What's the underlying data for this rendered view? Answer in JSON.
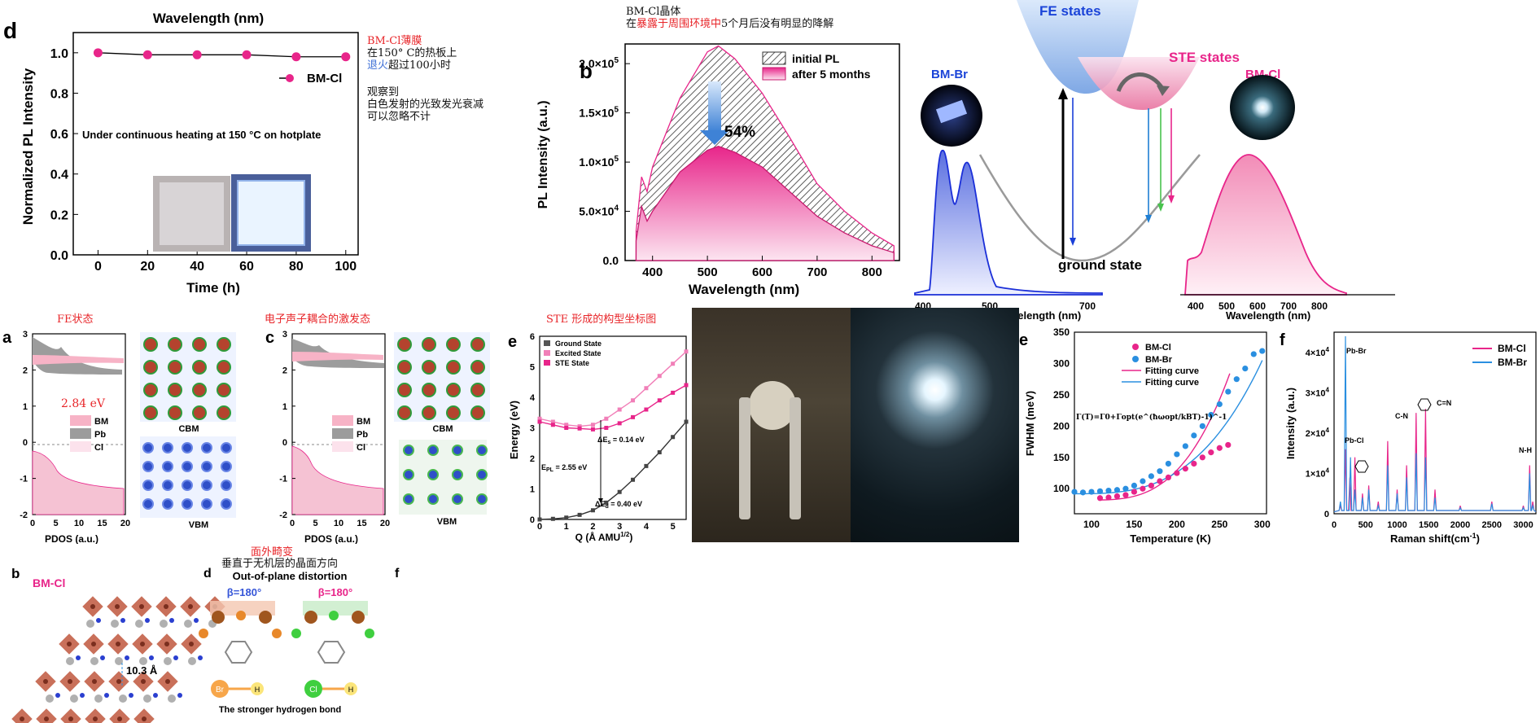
{
  "panel_d_top": {
    "letter": "d",
    "title": "Wavelength (nm)",
    "ylabel": "Normalized PL Intensity",
    "xlabel": "Time (h)",
    "legend": "BM-Cl",
    "annotation": "Under continuous heating at 150 °C on hotplate",
    "color": "#e8258a"
  },
  "note_d": {
    "l1": "BM-Cl薄膜",
    "l2": "在150° C的热板上",
    "l3a": "退火",
    "l3b": "超过100小时",
    "l4": "观察到",
    "l5": "白色发射的光致发光衰减",
    "l6": "可以忽略不计"
  },
  "panel_b_top": {
    "letter": "b",
    "note1": "BM-Cl晶体",
    "note2a": "在",
    "note2b": "暴露于周围环境中",
    "note2c": "5个月后没有明显的降解",
    "ylabel": "PL Intensity (a.u.)",
    "xlabel": "Wavelength (nm)",
    "legend1": "initial PL",
    "legend2": "after 5 months",
    "pct": "54%",
    "color": "#e8258a"
  },
  "panel_fe": {
    "fe": "FE states",
    "ste": "STE states",
    "ground": "ground state",
    "bmbr": "BM-Br",
    "bmcl": "BM-Cl",
    "xlabel1": "Wavelength (nm)",
    "xlabel2": "Wavelength (nm)"
  },
  "panel_a": {
    "letter": "a",
    "note": "FE状态",
    "energy": "2.84 eV",
    "legend": [
      "BM",
      "Pb",
      "Cl"
    ],
    "xlabel": "PDOS (a.u.)",
    "cbm": "CBM",
    "vbm": "VBM"
  },
  "panel_c": {
    "letter": "c",
    "note": "电子声子耦合的激发态",
    "legend": [
      "BM",
      "Pb",
      "Cl"
    ],
    "xlabel": "PDOS (a.u.)",
    "cbm": "CBM",
    "vbm": "VBM"
  },
  "panel_e_left": {
    "letter": "e",
    "note": "STE 形成的构型坐标图",
    "ylabel": "Energy (eV)",
    "xlabel": "Q (Å AMU",
    "legend": [
      "Ground State",
      "Excited State",
      "STE State"
    ],
    "es": "ΔE",
    "es_sub": "s",
    "es_val": " = 0.14 eV",
    "epl": "E",
    "epl_sub": "PL",
    "epl_val": " = 2.55 eV",
    "ed": "ΔE",
    "ed_sub": "d",
    "ed_val": " = 0.40 eV"
  },
  "panel_e_right": {
    "letter": "e",
    "ylabel": "FWHM (meV)",
    "xlabel": "Temperature (K)",
    "legend": [
      "BM-Cl",
      "BM-Br",
      "Fitting curve",
      "Fitting curve"
    ],
    "formula": "Γ(T)=Γ0+Γopt(e^(ħωopt/kBT)-1)^-1",
    "colors": {
      "cl": "#e8258a",
      "br": "#2a8fe0"
    }
  },
  "panel_f_right": {
    "letter": "f",
    "ylabel": "Intensity (a.u.)",
    "xlabel": "Raman shift(cm",
    "legend": [
      "BM-Cl",
      "BM-Br"
    ],
    "peaks": [
      "Pb-Br",
      "Pb-Cl",
      "C-N",
      "C=N",
      "N-H"
    ]
  },
  "panel_bottom": {
    "b": "b",
    "bmcl": "BM-Cl",
    "dist": "10.3 Å",
    "d": "d",
    "f": "f",
    "note1": "面外畸变",
    "note2": "垂直于无机层的晶面方向",
    "title": "Out-of-plane distortion",
    "beta1": "β=180°",
    "beta2": "β=180°",
    "br": "Br",
    "h1": "H",
    "cl": "Cl",
    "h2": "H",
    "caption": "The stronger hydrogen bond"
  },
  "chart_data": [
    {
      "type": "scatter",
      "title": "Wavelength (nm)",
      "xlabel": "Time (h)",
      "ylabel": "Normalized PL Intensity",
      "xlim": [
        -10,
        105
      ],
      "ylim": [
        0,
        1.1
      ],
      "series": [
        {
          "name": "BM-Cl",
          "x": [
            0,
            20,
            40,
            60,
            80,
            100
          ],
          "y": [
            1.0,
            0.99,
            0.99,
            0.99,
            0.98,
            0.98
          ]
        }
      ]
    },
    {
      "type": "line",
      "xlabel": "Wavelength (nm)",
      "ylabel": "PL Intensity (a.u.)",
      "xlim": [
        350,
        850
      ],
      "ylim": [
        0,
        220000
      ],
      "series": [
        {
          "name": "initial PL",
          "x": [
            370,
            380,
            390,
            400,
            450,
            500,
            520,
            550,
            600,
            650,
            700,
            750,
            800,
            840
          ],
          "y": [
            30000,
            85000,
            70000,
            95000,
            165000,
            212000,
            218000,
            205000,
            170000,
            125000,
            78000,
            50000,
            28000,
            15000
          ]
        },
        {
          "name": "after 5 months",
          "x": [
            370,
            380,
            390,
            400,
            450,
            500,
            520,
            550,
            600,
            650,
            700,
            750,
            800,
            840
          ],
          "y": [
            20000,
            55000,
            40000,
            50000,
            90000,
            112000,
            116000,
            110000,
            95000,
            70000,
            45000,
            28000,
            15000,
            8000
          ]
        }
      ]
    },
    {
      "type": "line",
      "xlabel": "Q (Å AMU^1/2)",
      "ylabel": "Energy (eV)",
      "xlim": [
        0,
        5.5
      ],
      "ylim": [
        0,
        6
      ],
      "series": [
        {
          "name": "Ground State",
          "x": [
            0,
            0.5,
            1,
            1.5,
            2,
            2.5,
            3,
            3.5,
            4,
            4.5,
            5,
            5.5
          ],
          "y": [
            0,
            0.02,
            0.06,
            0.15,
            0.3,
            0.55,
            0.9,
            1.3,
            1.75,
            2.2,
            2.7,
            3.2
          ]
        },
        {
          "name": "Excited State",
          "x": [
            0,
            0.5,
            1,
            1.5,
            2,
            2.5,
            3,
            3.5,
            4,
            4.5,
            5,
            5.5
          ],
          "y": [
            3.3,
            3.2,
            3.1,
            3.05,
            3.1,
            3.3,
            3.6,
            3.9,
            4.3,
            4.7,
            5.1,
            5.5
          ]
        },
        {
          "name": "STE State",
          "x": [
            0,
            0.5,
            1,
            1.5,
            2,
            2.5,
            3,
            3.5,
            4,
            4.5,
            5,
            5.5
          ],
          "y": [
            3.2,
            3.1,
            3.0,
            2.98,
            2.95,
            3.0,
            3.15,
            3.35,
            3.6,
            3.9,
            4.15,
            4.4
          ]
        }
      ]
    },
    {
      "type": "scatter",
      "xlabel": "Temperature (K)",
      "ylabel": "FWHM (meV)",
      "xlim": [
        80,
        305
      ],
      "ylim": [
        60,
        350
      ],
      "series": [
        {
          "name": "BM-Cl",
          "x": [
            110,
            120,
            130,
            140,
            150,
            160,
            170,
            180,
            190,
            200,
            210,
            220,
            230,
            240,
            250,
            260
          ],
          "y": [
            85,
            86,
            88,
            90,
            95,
            100,
            105,
            112,
            118,
            125,
            132,
            140,
            150,
            158,
            165,
            170
          ]
        },
        {
          "name": "BM-Br",
          "x": [
            80,
            90,
            100,
            110,
            120,
            130,
            140,
            150,
            160,
            170,
            180,
            190,
            200,
            210,
            220,
            230,
            240,
            250,
            260,
            270,
            280,
            290,
            300
          ],
          "y": [
            95,
            94,
            95,
            96,
            97,
            98,
            100,
            105,
            112,
            120,
            128,
            140,
            155,
            168,
            185,
            200,
            218,
            235,
            255,
            275,
            292,
            315,
            320
          ]
        }
      ]
    },
    {
      "type": "line",
      "xlabel": "Raman shift(cm^-1)",
      "ylabel": "Intensity (a.u.)",
      "xlim": [
        0,
        3200
      ],
      "ylim": [
        0,
        45000
      ],
      "series": [
        {
          "name": "BM-Cl",
          "x": [
            100,
            180,
            250,
            330,
            450,
            550,
            700,
            850,
            1000,
            1150,
            1300,
            1450,
            1600,
            2000,
            2500,
            3000,
            3100,
            3150
          ],
          "y": [
            2000,
            16000,
            9000,
            14000,
            5000,
            7000,
            3000,
            18000,
            6000,
            12000,
            25000,
            26000,
            6000,
            2000,
            3000,
            2000,
            12000,
            3000
          ]
        },
        {
          "name": "BM-Br",
          "x": [
            100,
            180,
            260,
            330,
            450,
            550,
            700,
            850,
            1000,
            1150,
            1300,
            1450,
            1600,
            2000,
            2500,
            3000,
            3100,
            3150
          ],
          "y": [
            3000,
            44000,
            14000,
            6000,
            4000,
            6000,
            2000,
            12000,
            5000,
            9000,
            15000,
            14000,
            4000,
            1500,
            2500,
            1500,
            10000,
            2000
          ]
        }
      ]
    }
  ]
}
